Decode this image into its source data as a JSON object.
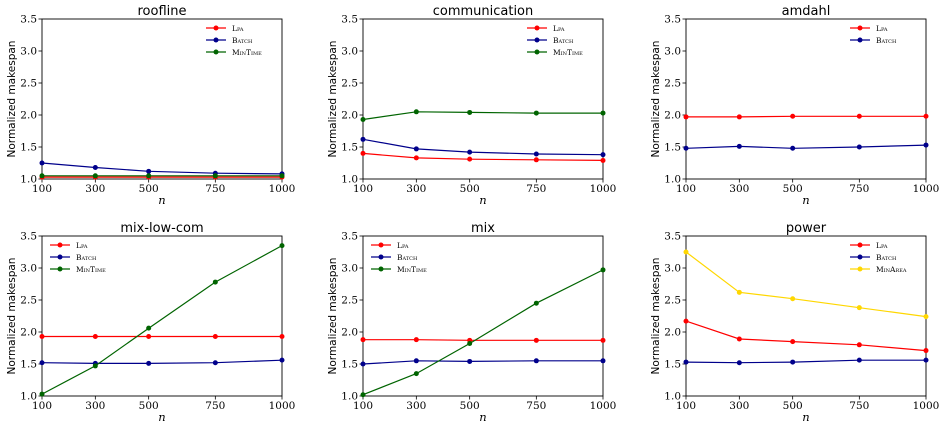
{
  "chart_data": [
    {
      "type": "line",
      "title": "roofline",
      "xlabel": "n",
      "ylabel": "Normalized makespan",
      "x": [
        100,
        300,
        500,
        750,
        1000
      ],
      "xlim": [
        100,
        1000
      ],
      "ylim": [
        1.0,
        3.5
      ],
      "yticks": [
        "1.0",
        "1.5",
        "2.0",
        "2.5",
        "3.0",
        "3.5"
      ],
      "xticks": [
        "100",
        "300",
        "500",
        "750",
        "1000"
      ],
      "legend": "top-right",
      "grid": false,
      "series": [
        {
          "name": "Lpa",
          "color": "#ff0000",
          "values": [
            1.03,
            1.03,
            1.03,
            1.03,
            1.03
          ]
        },
        {
          "name": "Batch",
          "color": "#00008b",
          "values": [
            1.25,
            1.18,
            1.12,
            1.09,
            1.08
          ]
        },
        {
          "name": "MinTime",
          "color": "#006400",
          "values": [
            1.05,
            1.05,
            1.05,
            1.05,
            1.05
          ]
        }
      ]
    },
    {
      "type": "line",
      "title": "communication",
      "xlabel": "n",
      "ylabel": "Normalized makespan",
      "x": [
        100,
        300,
        500,
        750,
        1000
      ],
      "xlim": [
        100,
        1000
      ],
      "ylim": [
        1.0,
        3.5
      ],
      "yticks": [
        "1.0",
        "1.5",
        "2.0",
        "2.5",
        "3.0",
        "3.5"
      ],
      "xticks": [
        "100",
        "300",
        "500",
        "750",
        "1000"
      ],
      "legend": "top-right",
      "grid": false,
      "series": [
        {
          "name": "Lpa",
          "color": "#ff0000",
          "values": [
            1.4,
            1.33,
            1.31,
            1.3,
            1.29
          ]
        },
        {
          "name": "Batch",
          "color": "#00008b",
          "values": [
            1.62,
            1.47,
            1.42,
            1.39,
            1.38
          ]
        },
        {
          "name": "MinTime",
          "color": "#006400",
          "values": [
            1.93,
            2.05,
            2.04,
            2.03,
            2.03
          ]
        }
      ]
    },
    {
      "type": "line",
      "title": "amdahl",
      "xlabel": "n",
      "ylabel": "Normalized makespan",
      "x": [
        100,
        300,
        500,
        750,
        1000
      ],
      "xlim": [
        100,
        1000
      ],
      "ylim": [
        1.0,
        3.5
      ],
      "yticks": [
        "1.0",
        "1.5",
        "2.0",
        "2.5",
        "3.0",
        "3.5"
      ],
      "xticks": [
        "100",
        "300",
        "500",
        "750",
        "1000"
      ],
      "legend": "top-right",
      "grid": false,
      "series": [
        {
          "name": "Lpa",
          "color": "#ff0000",
          "values": [
            1.97,
            1.97,
            1.98,
            1.98,
            1.98
          ]
        },
        {
          "name": "Batch",
          "color": "#00008b",
          "values": [
            1.48,
            1.51,
            1.48,
            1.5,
            1.53
          ]
        }
      ]
    },
    {
      "type": "line",
      "title": "mix-low-com",
      "xlabel": "n",
      "ylabel": "Normalized makespan",
      "x": [
        100,
        300,
        500,
        750,
        1000
      ],
      "xlim": [
        100,
        1000
      ],
      "ylim": [
        1.0,
        3.5
      ],
      "yticks": [
        "1.0",
        "1.5",
        "2.0",
        "2.5",
        "3.0",
        "3.5"
      ],
      "xticks": [
        "100",
        "300",
        "500",
        "750",
        "1000"
      ],
      "legend": "top-left",
      "grid": false,
      "series": [
        {
          "name": "Lpa",
          "color": "#ff0000",
          "values": [
            1.93,
            1.93,
            1.93,
            1.93,
            1.93
          ]
        },
        {
          "name": "Batch",
          "color": "#00008b",
          "values": [
            1.52,
            1.51,
            1.51,
            1.52,
            1.56
          ]
        },
        {
          "name": "MinTime",
          "color": "#006400",
          "values": [
            1.03,
            1.47,
            2.06,
            2.78,
            3.35
          ]
        }
      ]
    },
    {
      "type": "line",
      "title": "mix",
      "xlabel": "n",
      "ylabel": "Normalized makespan",
      "x": [
        100,
        300,
        500,
        750,
        1000
      ],
      "xlim": [
        100,
        1000
      ],
      "ylim": [
        1.0,
        3.5
      ],
      "yticks": [
        "1.0",
        "1.5",
        "2.0",
        "2.5",
        "3.0",
        "3.5"
      ],
      "xticks": [
        "100",
        "300",
        "500",
        "750",
        "1000"
      ],
      "legend": "top-left",
      "grid": false,
      "series": [
        {
          "name": "Lpa",
          "color": "#ff0000",
          "values": [
            1.88,
            1.88,
            1.87,
            1.87,
            1.87
          ]
        },
        {
          "name": "Batch",
          "color": "#00008b",
          "values": [
            1.5,
            1.55,
            1.54,
            1.55,
            1.55
          ]
        },
        {
          "name": "MinTime",
          "color": "#006400",
          "values": [
            1.02,
            1.35,
            1.82,
            2.45,
            2.97
          ]
        }
      ]
    },
    {
      "type": "line",
      "title": "power",
      "xlabel": "n",
      "ylabel": "Normalized makespan",
      "x": [
        100,
        300,
        500,
        750,
        1000
      ],
      "xlim": [
        100,
        1000
      ],
      "ylim": [
        1.0,
        3.5
      ],
      "yticks": [
        "1.0",
        "1.5",
        "2.0",
        "2.5",
        "3.0",
        "3.5"
      ],
      "xticks": [
        "100",
        "300",
        "500",
        "750",
        "1000"
      ],
      "legend": "top-right",
      "grid": false,
      "series": [
        {
          "name": "Lpa",
          "color": "#ff0000",
          "values": [
            2.17,
            1.89,
            1.85,
            1.8,
            1.71
          ]
        },
        {
          "name": "Batch",
          "color": "#00008b",
          "values": [
            1.53,
            1.52,
            1.53,
            1.56,
            1.56
          ]
        },
        {
          "name": "MinArea",
          "color": "#ffd700",
          "values": [
            3.25,
            2.62,
            2.52,
            2.38,
            2.24
          ]
        }
      ]
    }
  ]
}
